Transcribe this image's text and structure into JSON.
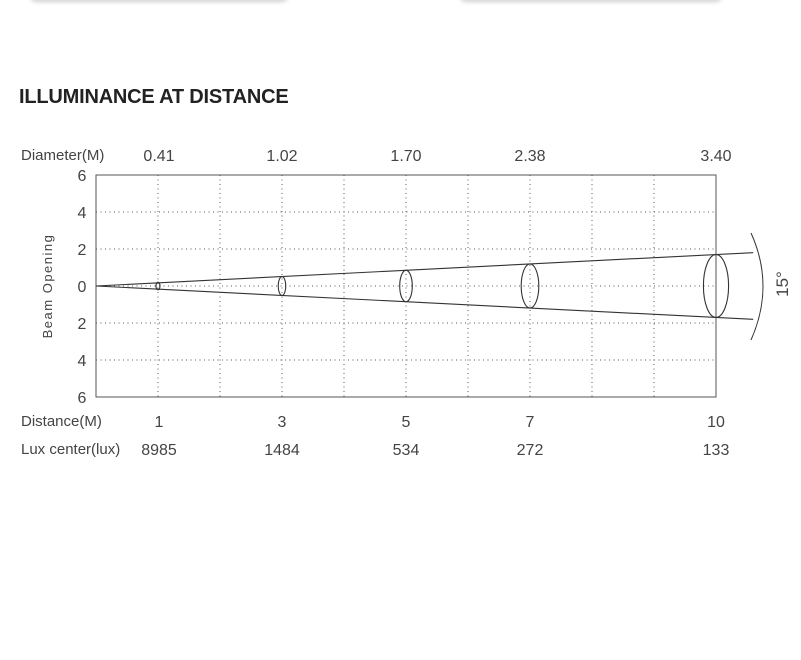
{
  "title": "ILLUMINANCE AT DISTANCE",
  "chart_data": {
    "type": "beam-diagram",
    "beam_angle": "15°",
    "ylabel": "Beam Opening",
    "y_ticks": [
      "6",
      "4",
      "2",
      "0",
      "2",
      "4",
      "6"
    ],
    "row_labels": {
      "diameter": "Diameter(M)",
      "distance": "Distance(M)",
      "lux": "Lux center(lux)"
    },
    "points": [
      {
        "distance": 1,
        "distance_label": "1",
        "diameter": 0.41,
        "diameter_label": "0.41",
        "lux": 8985,
        "lux_label": "8985"
      },
      {
        "distance": 3,
        "distance_label": "3",
        "diameter": 1.02,
        "diameter_label": "1.02",
        "lux": 1484,
        "lux_label": "1484"
      },
      {
        "distance": 5,
        "distance_label": "5",
        "diameter": 1.7,
        "diameter_label": "1.70",
        "lux": 534,
        "lux_label": "534"
      },
      {
        "distance": 7,
        "distance_label": "7",
        "diameter": 2.38,
        "diameter_label": "2.38",
        "lux": 272,
        "lux_label": "272"
      },
      {
        "distance": 10,
        "distance_label": "10",
        "diameter": 3.4,
        "diameter_label": "3.40",
        "lux": 133,
        "lux_label": "133"
      }
    ],
    "ylim": [
      -6,
      6
    ],
    "xlim": [
      0,
      10
    ],
    "grid": true
  }
}
